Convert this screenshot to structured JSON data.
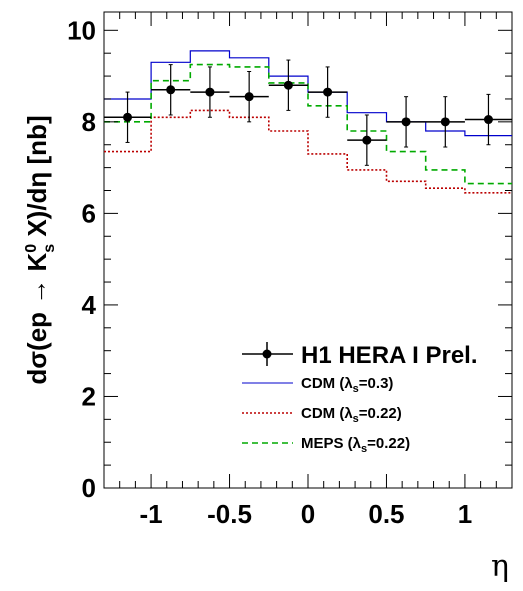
{
  "chart_data": {
    "type": "line",
    "ylabel": {
      "pre": "dσ(ep → K",
      "sup": "0",
      "sub": "s",
      "post": " X)/dη [nb]"
    },
    "xlabel": "η",
    "xlim": [
      -1.3,
      1.3
    ],
    "ylim": [
      0,
      10.4
    ],
    "xticks": [
      {
        "value": -1,
        "label": "-1"
      },
      {
        "value": -0.5,
        "label": "-0.5"
      },
      {
        "value": 0,
        "label": "0"
      },
      {
        "value": 0.5,
        "label": "0.5"
      },
      {
        "value": 1,
        "label": "1"
      }
    ],
    "yticks": [
      {
        "value": 0,
        "label": "0"
      },
      {
        "value": 2,
        "label": "2"
      },
      {
        "value": 4,
        "label": "4"
      },
      {
        "value": 6,
        "label": "6"
      },
      {
        "value": 8,
        "label": "8"
      },
      {
        "value": 10,
        "label": "10"
      }
    ],
    "bin_edges": [
      -1.3,
      -1.0,
      -0.75,
      -0.5,
      -0.25,
      0.0,
      0.25,
      0.5,
      0.75,
      1.0,
      1.3
    ],
    "data_series": {
      "legend": "H1 HERA I Prel.",
      "color": "#000000",
      "points": [
        {
          "x": -1.15,
          "y": 8.1,
          "err": 0.55
        },
        {
          "x": -0.875,
          "y": 8.7,
          "err": 0.55
        },
        {
          "x": -0.625,
          "y": 8.65,
          "err": 0.55
        },
        {
          "x": -0.375,
          "y": 8.55,
          "err": 0.55
        },
        {
          "x": -0.125,
          "y": 8.8,
          "err": 0.55
        },
        {
          "x": 0.125,
          "y": 8.65,
          "err": 0.55
        },
        {
          "x": 0.375,
          "y": 7.6,
          "err": 0.55
        },
        {
          "x": 0.625,
          "y": 8.0,
          "err": 0.55
        },
        {
          "x": 0.875,
          "y": 8.0,
          "err": 0.55
        },
        {
          "x": 1.15,
          "y": 8.05,
          "err": 0.55
        }
      ]
    },
    "series": [
      {
        "legend_pre": "CDM (λ",
        "legend_sub": "s",
        "legend_post": "=0.3)",
        "color": "#0000cc",
        "dash": "",
        "values": [
          8.5,
          9.3,
          9.55,
          9.4,
          9.0,
          8.65,
          8.2,
          8.0,
          7.8,
          7.7
        ]
      },
      {
        "legend_pre": "CDM (λ",
        "legend_sub": "s",
        "legend_post": "=0.22)",
        "color": "#bb0000",
        "dash": "2,2",
        "values": [
          7.35,
          8.1,
          8.25,
          8.1,
          7.8,
          7.3,
          6.95,
          6.7,
          6.55,
          6.45
        ]
      },
      {
        "legend_pre": "MEPS (λ",
        "legend_sub": "s",
        "legend_post": "=0.22)",
        "color": "#00aa00",
        "dash": "6,4",
        "values": [
          8.0,
          8.9,
          9.25,
          9.2,
          8.85,
          8.35,
          7.8,
          7.35,
          6.95,
          6.65
        ]
      }
    ]
  }
}
